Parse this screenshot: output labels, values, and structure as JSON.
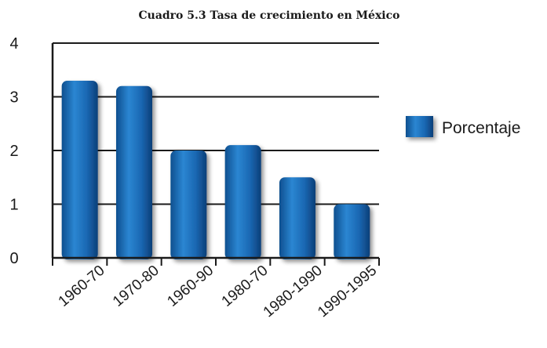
{
  "chart_data": {
    "type": "bar",
    "title": "Cuadro 5.3  Tasa de crecimiento en México",
    "categories": [
      "1960-70",
      "1970-80",
      "1960-90",
      "1980-70",
      "1980-1990",
      "1990-1995"
    ],
    "series": [
      {
        "name": "Porcentaje",
        "values": [
          3.3,
          3.2,
          2.0,
          2.1,
          1.5,
          1.0
        ],
        "color": "#1f6fb8"
      }
    ],
    "y_ticks": [
      "0",
      "1",
      "2",
      "3",
      "4"
    ],
    "ylim": [
      0,
      4
    ],
    "grid": true,
    "legend_position": "right"
  }
}
